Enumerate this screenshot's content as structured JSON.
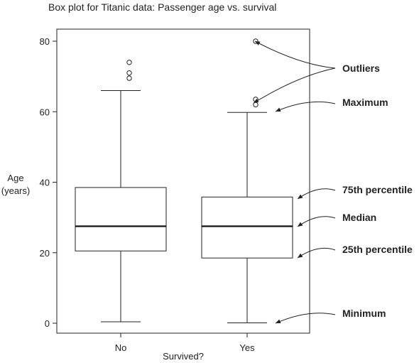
{
  "chart_data": {
    "type": "boxplot",
    "title": "Box plot for Titanic data: Passenger age vs. survival",
    "xlabel": "Survived?",
    "ylabel_lines": [
      "Age",
      "(years)"
    ],
    "categories": [
      "No",
      "Yes"
    ],
    "y_ticks": [
      0,
      20,
      40,
      60,
      80
    ],
    "ylim": [
      -2,
      83
    ],
    "grid": false,
    "boxes": [
      {
        "category": "No",
        "min": 0.4,
        "q1": 20.5,
        "median": 27.5,
        "q3": 38.5,
        "max": 66,
        "outliers": [
          69.5,
          71,
          74
        ]
      },
      {
        "category": "Yes",
        "min": 0.1,
        "q1": 18.5,
        "median": 27.5,
        "q3": 35.8,
        "max": 59.8,
        "outliers": [
          62,
          63.5,
          80
        ]
      }
    ],
    "annotations": [
      {
        "label": "Outliers"
      },
      {
        "label": "Maximum"
      },
      {
        "label": "75th percentile"
      },
      {
        "label": "Median"
      },
      {
        "label": "25th percentile"
      },
      {
        "label": "Minimum"
      }
    ]
  }
}
